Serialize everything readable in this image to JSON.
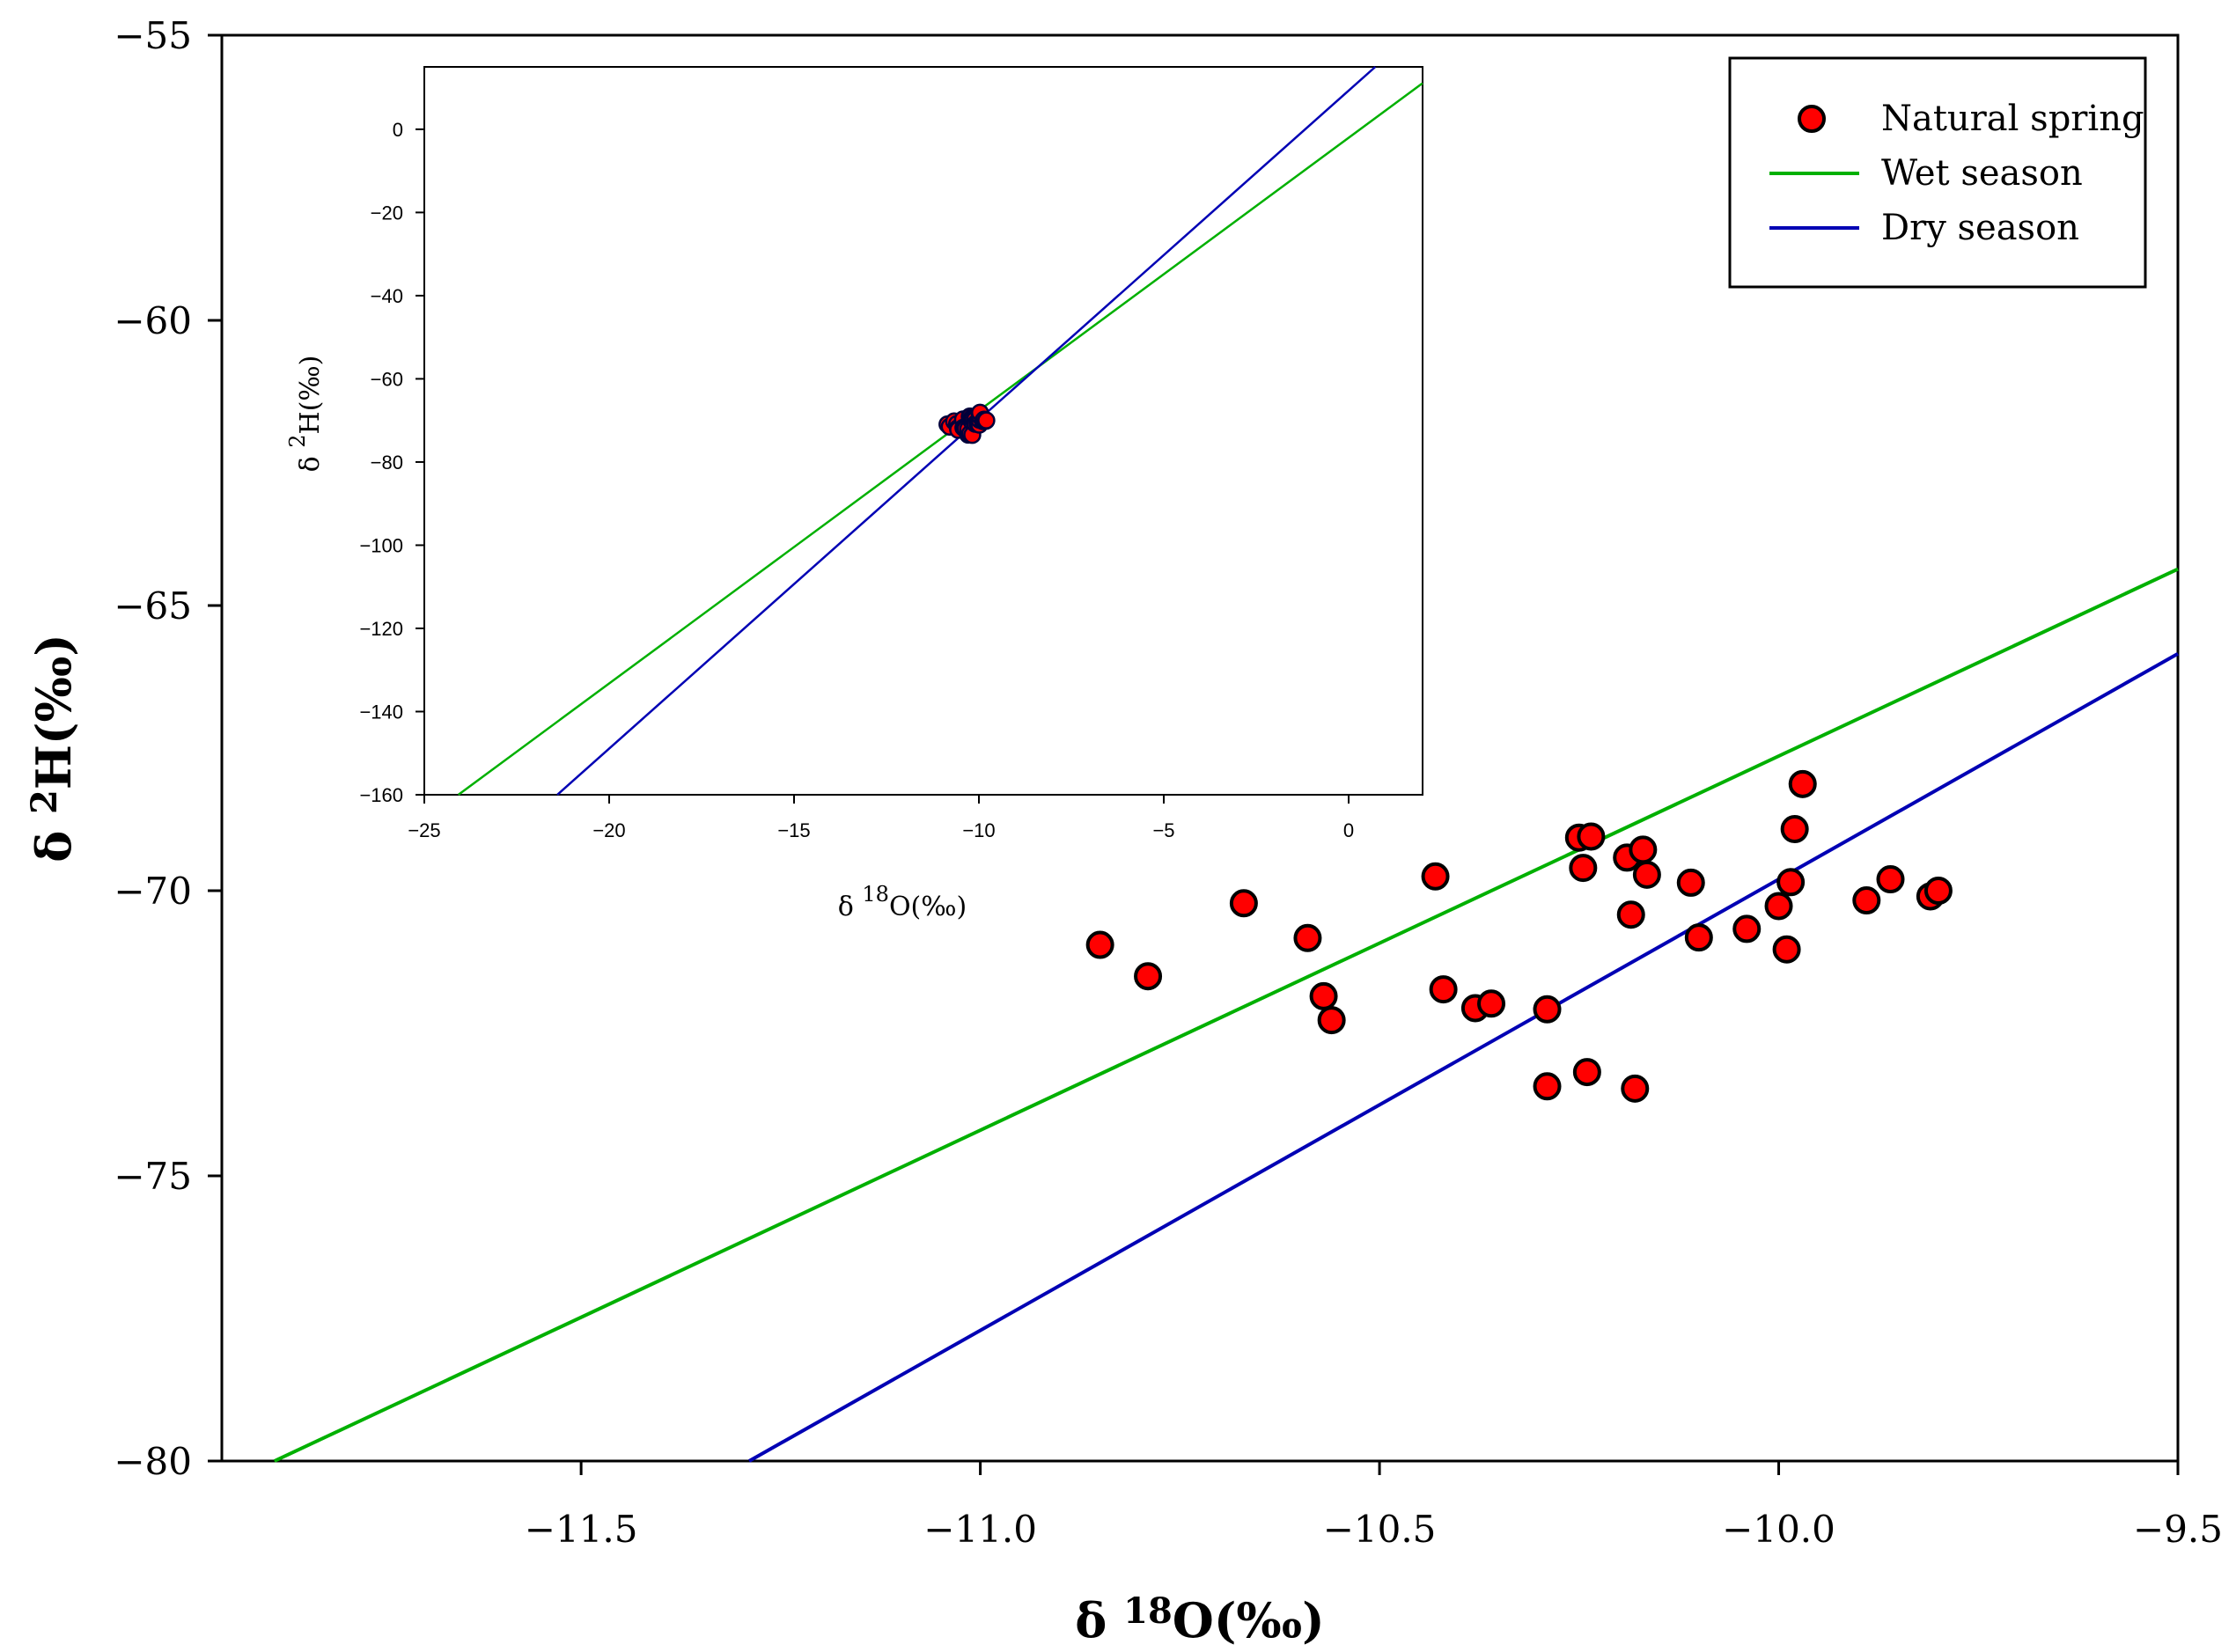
{
  "chart_data": {
    "type": "scatter",
    "main": {
      "xlabel_symbol": "δ",
      "xlabel_sup": "18",
      "xlabel_rest": "O(‰)",
      "ylabel_symbol": "δ",
      "ylabel_sup": "2",
      "ylabel_rest": "H(‰)",
      "xlim": [
        -11.95,
        -9.5
      ],
      "ylim": [
        -80,
        -55
      ],
      "xticks": [
        -11.5,
        -11.0,
        -10.5,
        -10.0,
        -9.5
      ],
      "xtick_labels": [
        "−11.5",
        "−11.0",
        "−10.5",
        "−10.0",
        "−9.5"
      ],
      "yticks": [
        -80,
        -75,
        -70,
        -65,
        -60,
        -55
      ],
      "ytick_labels": [
        "−80",
        "−75",
        "−70",
        "−65",
        "−60",
        "−55"
      ]
    },
    "inset": {
      "xlabel_symbol": "δ",
      "xlabel_sup": "18",
      "xlabel_rest": "O(‰)",
      "ylabel_symbol": "δ",
      "ylabel_sup": "2",
      "ylabel_rest": "H(‰)",
      "xlim": [
        -25,
        2
      ],
      "ylim": [
        -160,
        15
      ],
      "xticks": [
        -25,
        -20,
        -15,
        -10,
        -5,
        0
      ],
      "xtick_labels": [
        "−25",
        "−20",
        "−15",
        "−10",
        "−5",
        "0"
      ],
      "yticks": [
        -160,
        -140,
        -120,
        -100,
        -80,
        -60,
        -40,
        -20,
        0
      ],
      "ytick_labels": [
        "−160",
        "−140",
        "−120",
        "−100",
        "−80",
        "−60",
        "−40",
        "−20",
        "0"
      ]
    },
    "series": [
      {
        "name": "Natural spring",
        "kind": "points",
        "color": "#ff0000",
        "edge_color": "#000000",
        "points": [
          [
            -10.85,
            -70.95
          ],
          [
            -10.79,
            -71.5
          ],
          [
            -10.67,
            -70.22
          ],
          [
            -10.59,
            -70.83
          ],
          [
            -10.57,
            -71.85
          ],
          [
            -10.56,
            -72.27
          ],
          [
            -10.43,
            -69.75
          ],
          [
            -10.42,
            -71.73
          ],
          [
            -10.38,
            -72.06
          ],
          [
            -10.36,
            -71.98
          ],
          [
            -10.29,
            -73.43
          ],
          [
            -10.29,
            -72.08
          ],
          [
            -10.25,
            -69.07
          ],
          [
            -10.245,
            -69.6
          ],
          [
            -10.24,
            -73.18
          ],
          [
            -10.235,
            -69.05
          ],
          [
            -10.19,
            -69.42
          ],
          [
            -10.185,
            -70.42
          ],
          [
            -10.18,
            -73.47
          ],
          [
            -10.17,
            -69.28
          ],
          [
            -10.165,
            -69.72
          ],
          [
            -10.11,
            -69.86
          ],
          [
            -10.1,
            -70.82
          ],
          [
            -10.04,
            -70.67
          ],
          [
            -10.0,
            -70.27
          ],
          [
            -9.99,
            -71.03
          ],
          [
            -9.985,
            -69.85
          ],
          [
            -9.98,
            -68.92
          ],
          [
            -9.97,
            -68.13
          ],
          [
            -9.89,
            -70.17
          ],
          [
            -9.86,
            -69.8
          ],
          [
            -9.81,
            -70.1
          ],
          [
            -9.8,
            -70.0
          ]
        ]
      },
      {
        "name": "Wet season",
        "kind": "line",
        "color": "#00b000",
        "slope": 6.56,
        "intercept": -2.04
      },
      {
        "name": "Dry season",
        "kind": "line",
        "color": "#0000b4",
        "slope": 7.91,
        "intercept": 9.3
      }
    ],
    "legend": {
      "position": "top-right",
      "entries": [
        "Natural spring",
        "Wet season",
        "Dry season"
      ]
    }
  }
}
